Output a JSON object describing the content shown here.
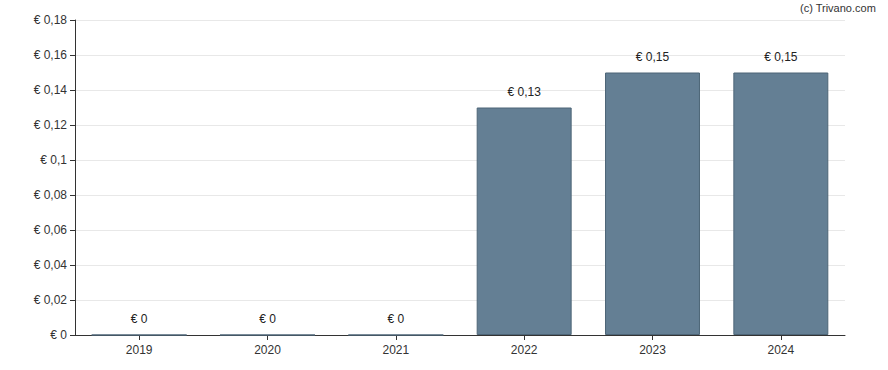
{
  "chart_data": {
    "type": "bar",
    "annotations": [
      "(c) Trivano.com"
    ],
    "categories": [
      "2019",
      "2020",
      "2021",
      "2022",
      "2023",
      "2024"
    ],
    "values": [
      0,
      0,
      0,
      0.13,
      0.15,
      0.15
    ],
    "value_labels": [
      "€ 0",
      "€ 0",
      "€ 0",
      "€ 0,13",
      "€ 0,15",
      "€ 0,15"
    ],
    "data_labels": true,
    "color": "#647f94",
    "ylim": [
      0,
      0.18
    ],
    "yticks": [
      {
        "value": 0,
        "label": "€ 0"
      },
      {
        "value": 0.02,
        "label": "€ 0,02"
      },
      {
        "value": 0.04,
        "label": "€ 0,04"
      },
      {
        "value": 0.06,
        "label": "€ 0,06"
      },
      {
        "value": 0.08,
        "label": "€ 0,08"
      },
      {
        "value": 0.1,
        "label": "€ 0,1"
      },
      {
        "value": 0.12,
        "label": "€ 0,12"
      },
      {
        "value": 0.14,
        "label": "€ 0,14"
      },
      {
        "value": 0.16,
        "label": "€ 0,16"
      },
      {
        "value": 0.18,
        "label": "€ 0,18"
      }
    ],
    "grid": true
  }
}
